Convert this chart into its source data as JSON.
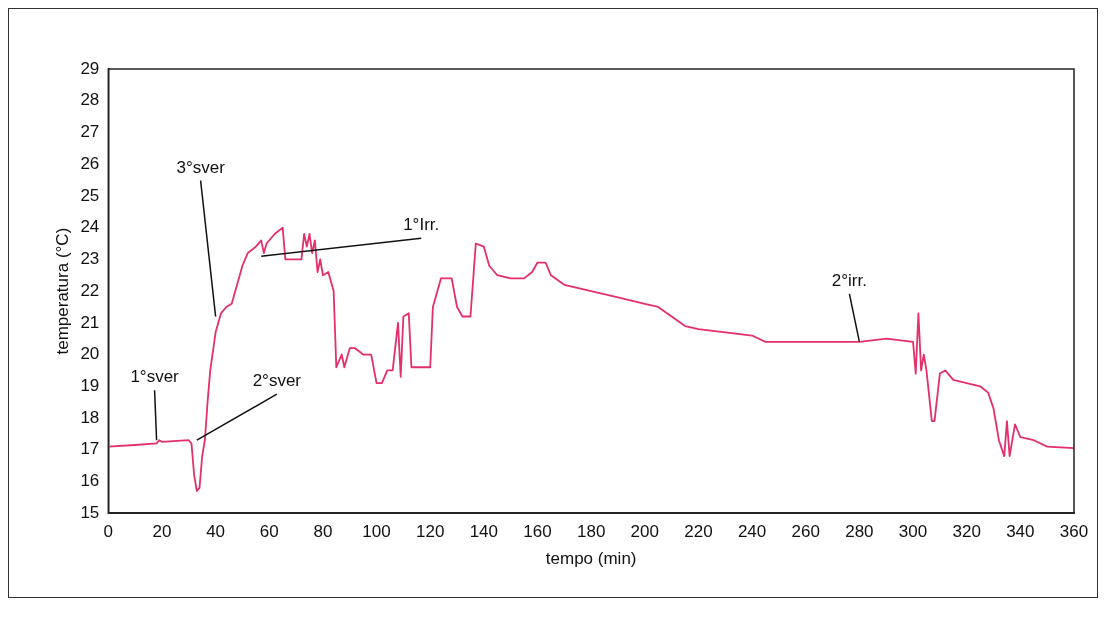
{
  "chart_data": {
    "type": "line",
    "xlabel": "tempo (min)",
    "ylabel": "temperatura (°C)",
    "x": [
      0,
      10,
      18,
      19,
      20,
      30,
      31,
      32,
      33,
      34,
      35,
      36,
      37,
      38,
      40,
      42,
      44,
      46,
      48,
      50,
      52,
      55,
      57,
      58,
      59,
      62,
      65,
      66,
      70,
      72,
      73,
      74,
      75,
      76,
      77,
      78,
      79,
      80,
      82,
      84,
      85,
      87,
      88,
      90,
      92,
      95,
      98,
      100,
      102,
      104,
      106,
      108,
      109,
      110,
      112,
      113,
      118,
      120,
      121,
      124,
      128,
      130,
      132,
      135,
      137,
      140,
      142,
      145,
      150,
      155,
      158,
      160,
      163,
      165,
      170,
      180,
      190,
      200,
      205,
      210,
      215,
      220,
      230,
      240,
      245,
      255,
      260,
      270,
      280,
      290,
      300,
      301,
      302,
      303,
      304,
      305,
      307,
      308,
      310,
      312,
      315,
      320,
      325,
      328,
      330,
      332,
      334,
      335,
      336,
      338,
      340,
      345,
      350,
      360
    ],
    "series": [
      {
        "color": "#e4306a",
        "values": [
          17.1,
          17.15,
          17.2,
          17.3,
          17.25,
          17.3,
          17.2,
          16.2,
          15.7,
          15.8,
          16.8,
          17.3,
          18.5,
          19.5,
          20.7,
          21.3,
          21.5,
          21.6,
          22.2,
          22.8,
          23.2,
          23.4,
          23.6,
          23.2,
          23.5,
          23.8,
          24.0,
          23.0,
          23.0,
          23.0,
          23.8,
          23.4,
          23.8,
          23.2,
          23.6,
          22.6,
          23.0,
          22.5,
          22.6,
          22.0,
          19.6,
          20.0,
          19.6,
          20.2,
          20.2,
          20.0,
          20.0,
          19.1,
          19.1,
          19.5,
          19.5,
          21.0,
          19.3,
          21.2,
          21.3,
          19.6,
          19.6,
          19.6,
          21.5,
          22.4,
          22.4,
          21.5,
          21.2,
          21.2,
          23.5,
          23.4,
          22.8,
          22.5,
          22.4,
          22.4,
          22.6,
          22.9,
          22.9,
          22.5,
          22.2,
          22.0,
          21.8,
          21.6,
          21.5,
          21.2,
          20.9,
          20.8,
          20.7,
          20.6,
          20.4,
          20.4,
          20.4,
          20.4,
          20.4,
          20.5,
          20.4,
          19.4,
          21.3,
          19.5,
          20.0,
          19.5,
          17.9,
          17.9,
          19.4,
          19.5,
          19.2,
          19.1,
          19.0,
          18.8,
          18.3,
          17.3,
          16.8,
          17.9,
          16.8,
          17.8,
          17.4,
          17.3,
          17.1,
          17.05
        ]
      }
    ],
    "xlim": [
      0,
      360
    ],
    "xticks": [
      0,
      20,
      40,
      60,
      80,
      100,
      120,
      140,
      160,
      180,
      200,
      220,
      240,
      260,
      280,
      300,
      320,
      340,
      360
    ],
    "ylim": [
      15,
      29
    ],
    "yticks": [
      15,
      16,
      17,
      18,
      19,
      20,
      21,
      22,
      23,
      24,
      25,
      26,
      27,
      28,
      29
    ],
    "grid": false,
    "legend": false,
    "marker": "none",
    "line_style": "solid",
    "annotations": [
      {
        "text": "1°sver",
        "x": 18,
        "y": 17.3
      },
      {
        "text": "2°sver",
        "x": 33,
        "y": 17.3
      },
      {
        "text": "3°sver",
        "x": 40,
        "y": 21.2
      },
      {
        "text": "1°Irr.",
        "x": 57,
        "y": 23.1
      },
      {
        "text": "2°irr.",
        "x": 280,
        "y": 20.4
      }
    ]
  }
}
